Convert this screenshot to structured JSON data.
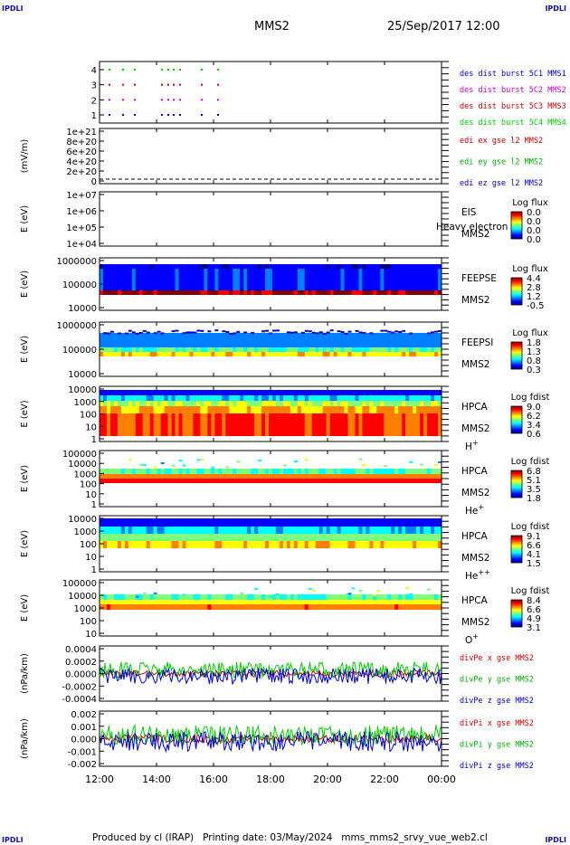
{
  "corners": {
    "tl": "IPDLI",
    "tr": "IPDLI",
    "bl": "IPDLI",
    "br": "IPDLI"
  },
  "header": {
    "title": "MMS2",
    "date": "25/Sep/2017 12:00"
  },
  "footer": {
    "text": "Produced by cl (IRAP)   Printing date: 03/May/2024   mms_mms2_srvy_vue_web2.cl"
  },
  "xaxis": {
    "ticks": [
      "12:00",
      "14:00",
      "16:00",
      "18:00",
      "20:00",
      "22:00",
      "00:00"
    ]
  },
  "chart_data": [
    {
      "type": "scatter",
      "ylim": [
        0.5,
        4.5
      ],
      "yticks": [
        "4",
        "3",
        "2",
        "1"
      ],
      "legend": [
        {
          "text": "des dist burst 5C1 MMS1",
          "color": "#0000cc"
        },
        {
          "text": "des dist burst 5C2 MMS2",
          "color": "#cc00cc"
        },
        {
          "text": "des dist burst 5C3 MMS3",
          "color": "#cc0000"
        },
        {
          "text": "des dist burst 5C4 MMS4",
          "color": "#00cc00"
        }
      ]
    },
    {
      "type": "line",
      "ylabel": "(mV/m)",
      "yticks": [
        "1e+21",
        "8e+20",
        "6e+20",
        "4e+20",
        "2e+20",
        "0"
      ],
      "legend": [
        {
          "text": "edi ex gse l2 MMS2",
          "color": "#cc0000"
        },
        {
          "text": "edi ey gse l2 MMS2",
          "color": "#00aa00"
        },
        {
          "text": "edi ez gse l2 MMS2",
          "color": "#0000cc"
        }
      ]
    },
    {
      "type": "heatmap",
      "ylabel": "E (eV)",
      "yticks": [
        "1e+07",
        "1e+06",
        "1e+05",
        "1e+04"
      ],
      "labels": [
        "EIS",
        "MMS2"
      ],
      "overlay": "Heavy electron to",
      "cbar_title": "Log flux",
      "cbar_ticks": [
        "0.0",
        "0.0",
        "0.0",
        "0.0"
      ]
    },
    {
      "type": "heatmap",
      "ylabel": "E (eV)",
      "yticks": [
        "1000000",
        "100000",
        "10000"
      ],
      "labels": [
        "FEEPSE",
        "MMS2"
      ],
      "cbar_title": "Log flux",
      "cbar_ticks": [
        "4.4",
        "2.8",
        "1.2",
        "-0.5"
      ]
    },
    {
      "type": "heatmap",
      "ylabel": "E (eV)",
      "yticks": [
        "1000000",
        "100000",
        "10000"
      ],
      "labels": [
        "FEEPSI",
        "MMS2"
      ],
      "cbar_title": "Log flux",
      "cbar_ticks": [
        "1.8",
        "1.3",
        "0.8",
        "0.3"
      ]
    },
    {
      "type": "heatmap",
      "ylabel": "E (eV)",
      "yticks": [
        "10000",
        "1000",
        "100",
        "10",
        "1"
      ],
      "labels": [
        "HPCA",
        "MMS2"
      ],
      "species": "H",
      "species_sup": "+",
      "cbar_title": "Log fdist",
      "cbar_ticks": [
        "9.0",
        "6.2",
        "3.4",
        "0.6"
      ]
    },
    {
      "type": "heatmap",
      "ylabel": "E (eV)",
      "yticks": [
        "100000",
        "10000",
        "1000",
        "100",
        "10",
        "1"
      ],
      "labels": [
        "HPCA",
        "MMS2"
      ],
      "species": "He",
      "species_sup": "+",
      "cbar_title": "Log fdist",
      "cbar_ticks": [
        "6.8",
        "5.1",
        "3.5",
        "1.8"
      ]
    },
    {
      "type": "heatmap",
      "ylabel": "E (eV)",
      "yticks": [
        "10000",
        "1000",
        "100",
        "10",
        "1"
      ],
      "labels": [
        "HPCA",
        "MMS2"
      ],
      "species": "He",
      "species_sup": "++",
      "cbar_title": "Log fdist",
      "cbar_ticks": [
        "9.1",
        "6.6",
        "4.1",
        "1.5"
      ]
    },
    {
      "type": "heatmap",
      "ylabel": "E (eV)",
      "yticks": [
        "100000",
        "10000",
        "1000",
        "100",
        "10"
      ],
      "labels": [
        "HPCA",
        "MMS2"
      ],
      "species": "O",
      "species_sup": "+",
      "cbar_title": "Log fdist",
      "cbar_ticks": [
        "8.4",
        "6.6",
        "4.9",
        "3.1"
      ]
    },
    {
      "type": "line",
      "ylabel": "(nPa/km)",
      "yticks": [
        "0.0004",
        "0.0002",
        "0.0000",
        "-0.0002",
        "-0.0004"
      ],
      "ylim": [
        -0.0005,
        0.0005
      ],
      "legend": [
        {
          "text": "divPe x gse MMS2",
          "color": "#cc0000"
        },
        {
          "text": "divPe y gse MMS2",
          "color": "#00aa00"
        },
        {
          "text": "divPe z gse MMS2",
          "color": "#0000cc"
        }
      ]
    },
    {
      "type": "line",
      "ylabel": "(nPa/km)",
      "yticks": [
        "0.002",
        "0.001",
        "0.000",
        "-0.001",
        "-0.002"
      ],
      "ylim": [
        -0.0025,
        0.0025
      ],
      "legend": [
        {
          "text": "divPi x gse MMS2",
          "color": "#cc0000"
        },
        {
          "text": "divPi y gse MMS2",
          "color": "#00aa00"
        },
        {
          "text": "divPi z gse MMS2",
          "color": "#0000cc"
        }
      ]
    }
  ]
}
